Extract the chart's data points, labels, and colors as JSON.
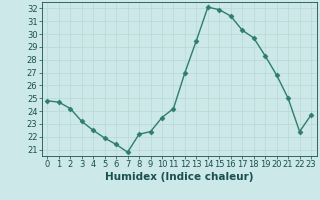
{
  "x": [
    0,
    1,
    2,
    3,
    4,
    5,
    6,
    7,
    8,
    9,
    10,
    11,
    12,
    13,
    14,
    15,
    16,
    17,
    18,
    19,
    20,
    21,
    22,
    23
  ],
  "y": [
    24.8,
    24.7,
    24.2,
    23.2,
    22.5,
    21.9,
    21.4,
    20.8,
    22.2,
    22.4,
    23.5,
    24.2,
    27.0,
    29.5,
    32.1,
    31.9,
    31.4,
    30.3,
    29.7,
    28.3,
    26.8,
    25.0,
    22.4,
    23.7
  ],
  "xlabel": "Humidex (Indice chaleur)",
  "xlim": [
    -0.5,
    23.5
  ],
  "ylim": [
    20.5,
    32.5
  ],
  "yticks": [
    21,
    22,
    23,
    24,
    25,
    26,
    27,
    28,
    29,
    30,
    31,
    32
  ],
  "xticks": [
    0,
    1,
    2,
    3,
    4,
    5,
    6,
    7,
    8,
    9,
    10,
    11,
    12,
    13,
    14,
    15,
    16,
    17,
    18,
    19,
    20,
    21,
    22,
    23
  ],
  "line_color": "#2e7d6e",
  "marker": "D",
  "marker_size": 2.5,
  "bg_color": "#cce8e8",
  "grid_color": "#b8d8d4",
  "label_color": "#1a5050",
  "tick_color": "#1a5050",
  "font_size": 6.0,
  "xlabel_fontsize": 7.5,
  "line_width": 1.0
}
